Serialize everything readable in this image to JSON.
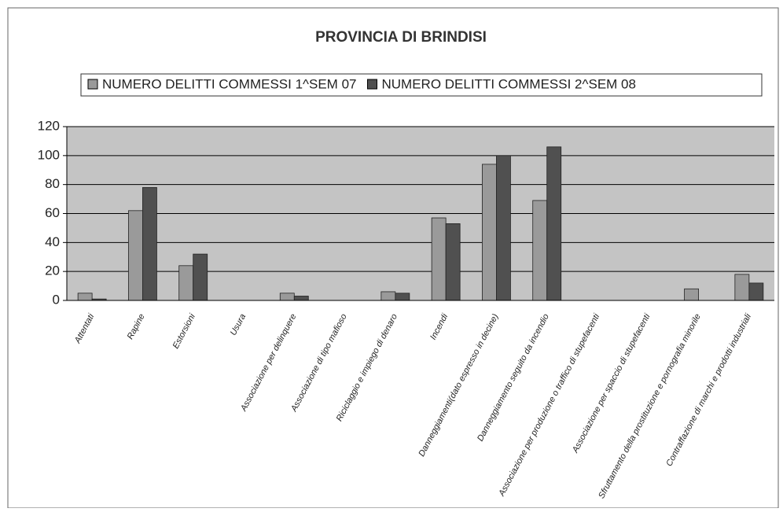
{
  "chart_data": {
    "type": "bar",
    "title": "PROVINCIA DI BRINDISI",
    "categories": [
      "Attentati",
      "Rapine",
      "Estorsioni",
      "Usura",
      "Associazione per delinquere",
      "Associazione di tipo mafioso",
      "Riciclaggio e impiego di denaro",
      "Incendi",
      "Danneggiamenti(dato espresso in decine)",
      "Danneggiamento seguito da incendio",
      "Associazione per produzione o traffico di stupefacenti",
      "Associazione per spaccio di stupefacenti",
      "Sfruttamento della prostituzione e pornografia minorile",
      "Contraffazione di marchi e prodotti industriali"
    ],
    "series": [
      {
        "name": "NUMERO DELITTI COMMESSI 1^SEM 07",
        "color": "#9a9a9a",
        "values": [
          5,
          62,
          24,
          0,
          5,
          0,
          6,
          57,
          94,
          69,
          0,
          0,
          8,
          18
        ]
      },
      {
        "name": "NUMERO DELITTI COMMESSI 2^SEM 08",
        "color": "#505050",
        "values": [
          1,
          78,
          32,
          0,
          3,
          0,
          5,
          53,
          100,
          106,
          0,
          0,
          0,
          12
        ]
      }
    ],
    "ylim": [
      0,
      120
    ],
    "yticks": [
      0,
      20,
      40,
      60,
      80,
      100,
      120
    ],
    "grid": true,
    "legend": "top"
  }
}
